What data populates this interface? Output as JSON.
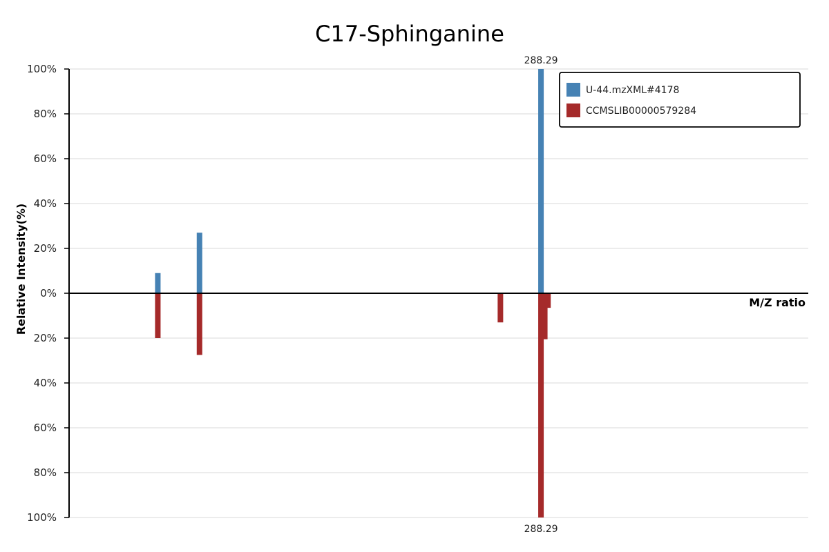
{
  "chart_data": {
    "type": "bar",
    "title": "C17-Sphinganine",
    "xlabel": "M/Z ratio",
    "ylabel": "Relative Intensity(%)",
    "ylim": [
      -100,
      100
    ],
    "y_ticks": [
      100,
      80,
      60,
      40,
      20,
      0,
      -20,
      -40,
      -60,
      -80,
      -100
    ],
    "y_tick_labels": [
      "100%",
      "80%",
      "60%",
      "40%",
      "20%",
      "0%",
      "20%",
      "40%",
      "60%",
      "80%",
      "100%"
    ],
    "grid": true,
    "legend_position": "top-right",
    "x_range": [
      200.0,
      338.3
    ],
    "series": [
      {
        "name": "U-44.mzXML#4178",
        "color": "#4682b4",
        "direction": "up",
        "peaks": [
          {
            "mz": 216.6,
            "intensity": 9
          },
          {
            "mz": 224.4,
            "intensity": 27
          },
          {
            "mz": 288.29,
            "intensity": 100,
            "label": "288.29"
          }
        ]
      },
      {
        "name": "CCMSLIB00000579284",
        "color": "#a52a2a",
        "direction": "down",
        "peaks": [
          {
            "mz": 216.6,
            "intensity": 20
          },
          {
            "mz": 224.4,
            "intensity": 27.5
          },
          {
            "mz": 280.7,
            "intensity": 13
          },
          {
            "mz": 288.29,
            "intensity": 100,
            "label": "288.29"
          },
          {
            "mz": 289.0,
            "intensity": 20.5
          },
          {
            "mz": 289.6,
            "intensity": 6.5
          }
        ]
      }
    ]
  }
}
